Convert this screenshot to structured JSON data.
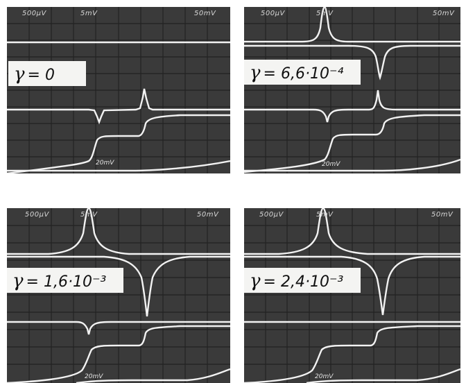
{
  "panels": [
    {
      "scale_left": "500µV",
      "scale_mid": "5mV",
      "scale_right": "50mV",
      "bottom_scale": "20mV",
      "gamma_symbol": "γ",
      "gamma_value": "= 0"
    },
    {
      "scale_left": "500µV",
      "scale_mid": "5mV",
      "scale_right": "50mV",
      "bottom_scale": "20mV",
      "gamma_symbol": "γ",
      "gamma_value": "= 6,6·10⁻⁴"
    },
    {
      "scale_left": "500µV",
      "scale_mid": "5mV",
      "scale_right": "50mV",
      "bottom_scale": "20mV",
      "gamma_symbol": "γ",
      "gamma_value": "= 1,6·10⁻³"
    },
    {
      "scale_left": "500µV",
      "scale_mid": "5mV",
      "scale_right": "50mV",
      "bottom_scale": "20mV",
      "gamma_symbol": "γ",
      "gamma_value": "= 2,4·10⁻³"
    }
  ],
  "colors": {
    "screen": "#3a3a3a",
    "trace": "#f2f2f2",
    "grid": "#222222",
    "label_box": "#f4f4f2"
  }
}
